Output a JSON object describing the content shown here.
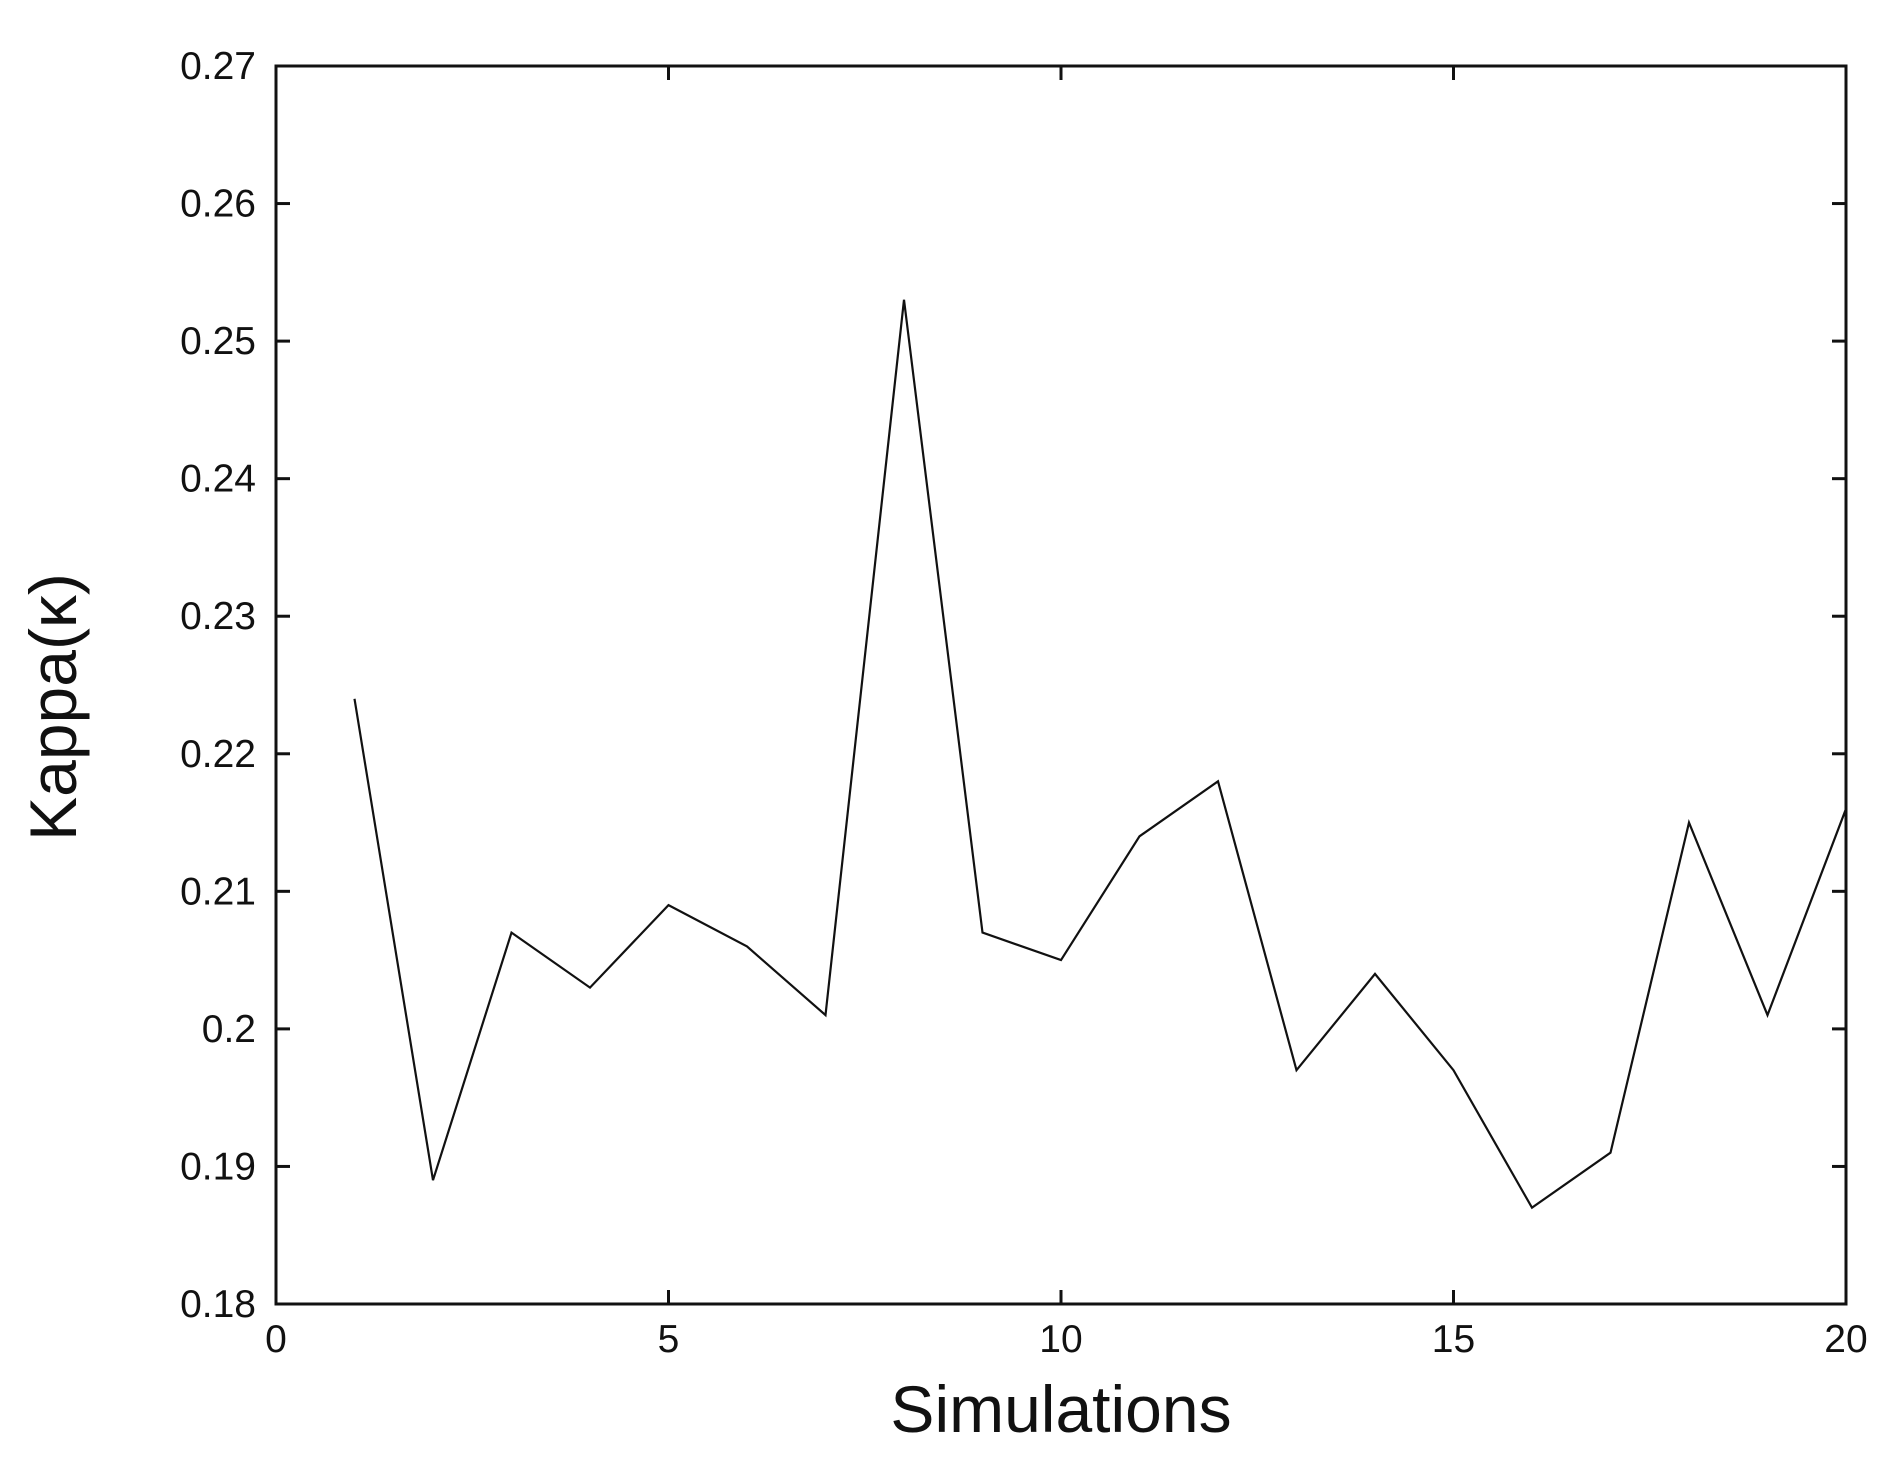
{
  "chart_data": {
    "type": "line",
    "title": "",
    "xlabel": "Simulations",
    "ylabel": "Kappa(κ)",
    "xlim": [
      0,
      20
    ],
    "ylim": [
      0.18,
      0.27
    ],
    "xticks": [
      0,
      5,
      10,
      15,
      20
    ],
    "xtick_labels": [
      "0",
      "5",
      "10",
      "15",
      "20"
    ],
    "yticks": [
      0.18,
      0.19,
      0.2,
      0.21,
      0.22,
      0.23,
      0.24,
      0.25,
      0.26,
      0.27
    ],
    "ytick_labels": [
      "0.18",
      "0.19",
      "0.2",
      "0.21",
      "0.22",
      "0.23",
      "0.24",
      "0.25",
      "0.26",
      "0.27"
    ],
    "grid": false,
    "legend": "none",
    "series": [
      {
        "x": [
          1,
          2,
          3,
          4,
          5,
          6,
          7,
          8,
          9,
          10,
          11,
          12,
          13,
          14,
          15,
          16,
          17,
          18,
          19,
          20
        ],
        "values": [
          0.224,
          0.189,
          0.207,
          0.203,
          0.209,
          0.206,
          0.201,
          0.253,
          0.207,
          0.205,
          0.214,
          0.218,
          0.197,
          0.204,
          0.197,
          0.187,
          0.191,
          0.215,
          0.201,
          0.216
        ],
        "color": "#111111"
      }
    ]
  }
}
